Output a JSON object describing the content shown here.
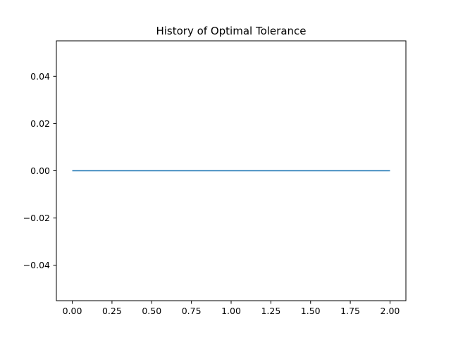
{
  "chart_data": {
    "type": "line",
    "title": "History of Optimal Tolerance",
    "xlabel": "",
    "ylabel": "",
    "xlim": [
      -0.1,
      2.1
    ],
    "ylim": [
      -0.055,
      0.055
    ],
    "xticks": [
      0.0,
      0.25,
      0.5,
      0.75,
      1.0,
      1.25,
      1.5,
      1.75,
      2.0
    ],
    "xtick_labels": [
      "0.00",
      "0.25",
      "0.50",
      "0.75",
      "1.00",
      "1.25",
      "1.50",
      "1.75",
      "2.00"
    ],
    "yticks": [
      -0.04,
      -0.02,
      0.0,
      0.02,
      0.04
    ],
    "ytick_labels": [
      "−0.04",
      "−0.02",
      "0.00",
      "0.02",
      "0.04"
    ],
    "grid": false,
    "legend": "none",
    "series": [
      {
        "x": [
          0,
          1,
          2
        ],
        "y": [
          0,
          0,
          0
        ],
        "color": "#1f77b4"
      }
    ]
  }
}
